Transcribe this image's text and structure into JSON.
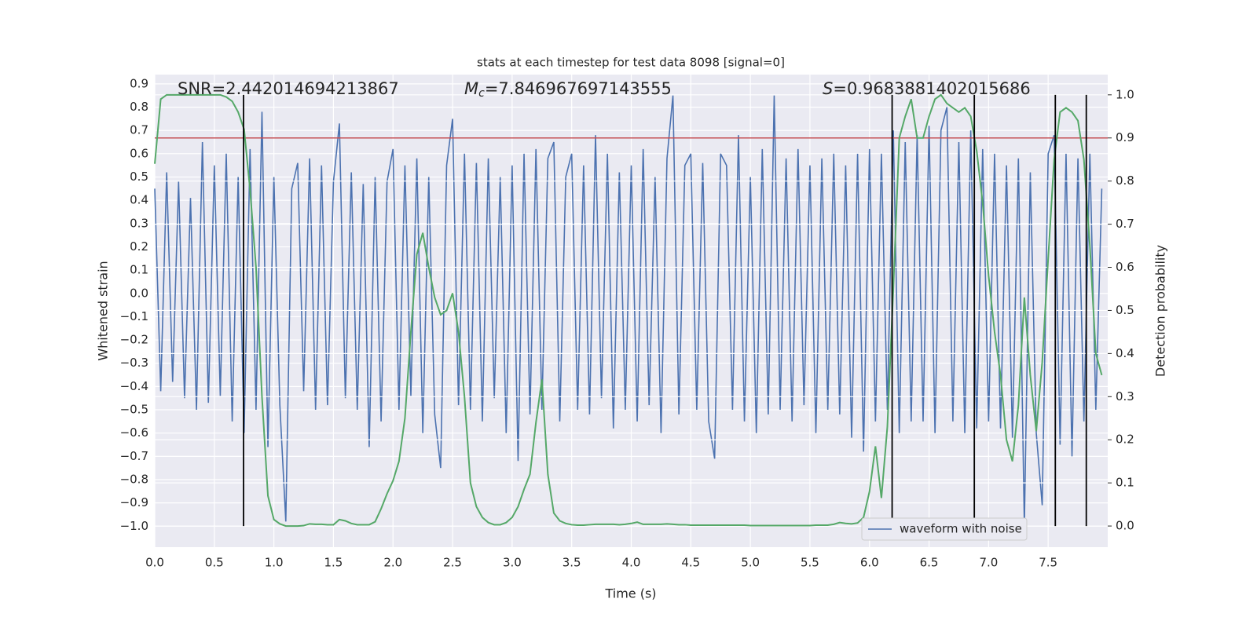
{
  "chart_data": {
    "type": "line",
    "title": "stats at each timestep for test data 8098 [signal=0]",
    "xlabel": "Time (s)",
    "ylabel": "Whitened strain",
    "y2label": "Detection probability",
    "annotations": [
      {
        "text": "SNR=2.442014694213867"
      },
      {
        "symbol": "M",
        "subscript": "c",
        "text": "=7.846967697143555"
      },
      {
        "symbol": "S",
        "text": "=0.9683881402015686"
      }
    ],
    "x": [
      0,
      0.05,
      0.1,
      0.15,
      0.2,
      0.25,
      0.3,
      0.35,
      0.4,
      0.45,
      0.5,
      0.55,
      0.6,
      0.65,
      0.7,
      0.75,
      0.8,
      0.85,
      0.9,
      0.95,
      1,
      1.05,
      1.1,
      1.15,
      1.2,
      1.25,
      1.3,
      1.35,
      1.4,
      1.45,
      1.5,
      1.55,
      1.6,
      1.65,
      1.7,
      1.75,
      1.8,
      1.85,
      1.9,
      1.95,
      2,
      2.05,
      2.1,
      2.15,
      2.2,
      2.25,
      2.3,
      2.35,
      2.4,
      2.45,
      2.5,
      2.55,
      2.6,
      2.65,
      2.7,
      2.75,
      2.8,
      2.85,
      2.9,
      2.95,
      3,
      3.05,
      3.1,
      3.15,
      3.2,
      3.25,
      3.3,
      3.35,
      3.4,
      3.45,
      3.5,
      3.55,
      3.6,
      3.65,
      3.7,
      3.75,
      3.8,
      3.85,
      3.9,
      3.95,
      4,
      4.05,
      4.1,
      4.15,
      4.2,
      4.25,
      4.3,
      4.35,
      4.4,
      4.45,
      4.5,
      4.55,
      4.6,
      4.65,
      4.7,
      4.75,
      4.8,
      4.85,
      4.9,
      4.95,
      5,
      5.05,
      5.1,
      5.15,
      5.2,
      5.25,
      5.3,
      5.35,
      5.4,
      5.45,
      5.5,
      5.55,
      5.6,
      5.65,
      5.7,
      5.75,
      5.8,
      5.85,
      5.9,
      5.95,
      6,
      6.05,
      6.1,
      6.15,
      6.2,
      6.25,
      6.3,
      6.35,
      6.4,
      6.45,
      6.5,
      6.55,
      6.6,
      6.65,
      6.7,
      6.75,
      6.8,
      6.85,
      6.9,
      6.95,
      7,
      7.05,
      7.1,
      7.15,
      7.2,
      7.25,
      7.3,
      7.35,
      7.4,
      7.45,
      7.5,
      7.55,
      7.6,
      7.65,
      7.7,
      7.75,
      7.8,
      7.85,
      7.9,
      7.95
    ],
    "series": [
      {
        "name": "waveform with noise",
        "color": "#4c72b0",
        "values": [
          0.45,
          -0.42,
          0.52,
          -0.38,
          0.48,
          -0.45,
          0.41,
          -0.5,
          0.65,
          -0.47,
          0.55,
          -0.44,
          0.6,
          -0.55,
          0.5,
          -0.6,
          0.62,
          -0.5,
          0.78,
          -0.66,
          0.5,
          -0.48,
          -0.98,
          0.45,
          0.56,
          -0.42,
          0.58,
          -0.5,
          0.55,
          -0.48,
          0.48,
          0.73,
          -0.45,
          0.52,
          -0.5,
          0.47,
          -0.66,
          0.5,
          -0.55,
          0.48,
          0.62,
          -0.5,
          0.55,
          -0.44,
          0.58,
          -0.6,
          0.5,
          -0.52,
          -0.75,
          0.55,
          0.75,
          -0.48,
          0.6,
          -0.5,
          0.56,
          -0.55,
          0.58,
          -0.45,
          0.5,
          -0.6,
          0.55,
          -0.72,
          0.6,
          -0.52,
          0.62,
          -0.5,
          0.58,
          0.65,
          -0.55,
          0.5,
          0.6,
          -0.5,
          0.55,
          -0.52,
          0.68,
          -0.45,
          0.6,
          -0.58,
          0.52,
          -0.5,
          0.55,
          -0.55,
          0.62,
          -0.48,
          0.5,
          -0.6,
          0.58,
          0.85,
          -0.52,
          0.55,
          0.6,
          -0.5,
          0.56,
          -0.55,
          -0.71,
          0.6,
          0.55,
          -0.5,
          0.68,
          -0.55,
          0.5,
          -0.6,
          0.62,
          -0.52,
          0.85,
          -0.5,
          0.58,
          -0.55,
          0.62,
          -0.48,
          0.55,
          -0.6,
          0.58,
          -0.5,
          0.6,
          -0.52,
          0.55,
          -0.62,
          0.6,
          -0.68,
          0.62,
          -0.55,
          0.6,
          -0.5,
          0.7,
          -0.6,
          0.65,
          -0.55,
          0.68,
          -0.55,
          0.72,
          -0.6,
          0.7,
          0.8,
          -0.55,
          0.65,
          -0.6,
          0.7,
          -0.58,
          0.62,
          -0.55,
          0.6,
          -0.58,
          0.55,
          -0.62,
          0.58,
          -1.0,
          0.52,
          -0.6,
          -0.91,
          0.6,
          0.68,
          -0.65,
          0.6,
          -0.7,
          0.58,
          -0.55,
          0.6,
          -0.5,
          0.45
        ]
      },
      {
        "color": "#55a868",
        "axis": "y2",
        "values": [
          0.84,
          0.99,
          1.0,
          1.0,
          1.0,
          1.0,
          1.0,
          1.0,
          1.0,
          1.0,
          1.0,
          1.0,
          0.995,
          0.985,
          0.96,
          0.92,
          0.78,
          0.6,
          0.3,
          0.07,
          0.015,
          0.005,
          0.0,
          0.0,
          0.0,
          0.001,
          0.005,
          0.004,
          0.004,
          0.003,
          0.003,
          0.015,
          0.012,
          0.006,
          0.003,
          0.003,
          0.003,
          0.01,
          0.04,
          0.075,
          0.105,
          0.15,
          0.25,
          0.45,
          0.63,
          0.68,
          0.6,
          0.53,
          0.49,
          0.5,
          0.54,
          0.45,
          0.3,
          0.1,
          0.045,
          0.02,
          0.008,
          0.003,
          0.003,
          0.008,
          0.02,
          0.045,
          0.085,
          0.12,
          0.24,
          0.34,
          0.12,
          0.03,
          0.012,
          0.006,
          0.003,
          0.002,
          0.002,
          0.003,
          0.004,
          0.004,
          0.004,
          0.004,
          0.003,
          0.004,
          0.006,
          0.009,
          0.004,
          0.004,
          0.004,
          0.004,
          0.005,
          0.004,
          0.003,
          0.003,
          0.002,
          0.002,
          0.002,
          0.002,
          0.002,
          0.002,
          0.002,
          0.002,
          0.002,
          0.002,
          0.001,
          0.001,
          0.001,
          0.001,
          0.001,
          0.001,
          0.001,
          0.001,
          0.001,
          0.001,
          0.001,
          0.002,
          0.002,
          0.002,
          0.004,
          0.008,
          0.006,
          0.005,
          0.007,
          0.02,
          0.08,
          0.185,
          0.065,
          0.23,
          0.55,
          0.9,
          0.95,
          0.99,
          0.9,
          0.9,
          0.95,
          0.99,
          1.0,
          0.98,
          0.97,
          0.96,
          0.97,
          0.95,
          0.87,
          0.75,
          0.58,
          0.45,
          0.35,
          0.2,
          0.15,
          0.28,
          0.53,
          0.35,
          0.22,
          0.38,
          0.62,
          0.85,
          0.96,
          0.97,
          0.96,
          0.94,
          0.85,
          0.65,
          0.4,
          0.35
        ]
      }
    ],
    "threshold": {
      "value": 0.9,
      "axis": "y2",
      "color": "#c44e52"
    },
    "vlines": {
      "x": [
        0.745,
        6.19,
        6.88,
        7.56,
        7.82
      ],
      "y2range": [
        0,
        1
      ],
      "color": "#000000"
    },
    "xlim": [
      0,
      8
    ],
    "ylim": [
      -1.09,
      0.94
    ],
    "y2lim": [
      -0.049,
      1.047
    ],
    "xticks": [
      {
        "value": 0,
        "label": "0.0"
      },
      0.5,
      {
        "value": 1,
        "label": "1.0"
      },
      1.5,
      {
        "value": 2,
        "label": "2.0"
      },
      2.5,
      {
        "value": 3,
        "label": "3.0"
      },
      3.5,
      {
        "value": 4,
        "label": "4.0"
      },
      4.5,
      {
        "value": 5,
        "label": "5.0"
      },
      5.5,
      {
        "value": 6,
        "label": "6.0"
      },
      6.5,
      {
        "value": 7,
        "label": "7.0"
      },
      7.5
    ],
    "yticks": [
      0.9,
      0.8,
      0.7,
      0.6,
      0.5,
      0.4,
      0.3,
      0.2,
      0.1,
      {
        "value": 0,
        "label": "0.0"
      },
      {
        "value": -0.1,
        "label": "−0.1"
      },
      {
        "value": -0.2,
        "label": "−0.2"
      },
      {
        "value": -0.3,
        "label": "−0.3"
      },
      {
        "value": -0.4,
        "label": "−0.4"
      },
      {
        "value": -0.5,
        "label": "−0.5"
      },
      {
        "value": -0.6,
        "label": "−0.6"
      },
      {
        "value": -0.7,
        "label": "−0.7"
      },
      {
        "value": -0.8,
        "label": "−0.8"
      },
      {
        "value": -0.9,
        "label": "−0.9"
      },
      {
        "value": -1.0,
        "label": "−1.0"
      }
    ],
    "y2ticks": [
      {
        "value": 0,
        "label": "0.0"
      },
      0.1,
      0.2,
      0.3,
      0.4,
      0.5,
      0.6,
      0.7,
      0.8,
      0.9,
      {
        "value": 1,
        "label": "1.0"
      }
    ],
    "grid": true,
    "legend": "lower right"
  }
}
